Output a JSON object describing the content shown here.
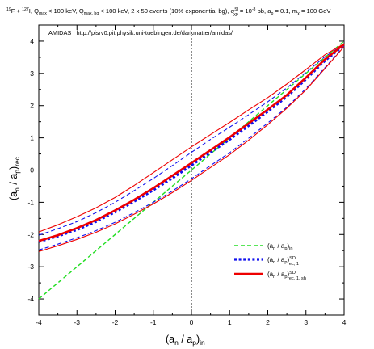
{
  "chart_data": {
    "type": "line",
    "title": "19F + 127I, Qmax < 100 keV, Qmax, bg < 100 keV, 2 x 50 events (10% exponential bg), σSIχp = 10-8 pb, ap = 0.1, mχ = 100 GeV",
    "title_parts": {
      "p1_sup": "19",
      "p1": "F + ",
      "p2_sup": "127",
      "p2": "I, Q",
      "qmax_sub": "max",
      "p3": " < 100 keV, Q",
      "qbg_sub": "max, bg",
      "p4": " < 100 keV, 2 x 50 events (10% exponential bg), σ",
      "sigma_sup": "SI",
      "sigma_sub": "χp",
      "p5": " = 10",
      "exp_sup": "-8",
      "p6": " pb, a",
      "ap_sub": "p",
      "p7": " = 0.1, m",
      "m_sub": "χ",
      "p8": " = 100 GeV"
    },
    "annotation": "AMIDAS   http://pisrv0.pit.physik.uni-tuebingen.de/darkmatter/amidas/",
    "xlabel": {
      "main": "(a",
      "n_sub": "n",
      "mid": " / a",
      "p_sub": "p",
      "end": ")",
      "in_sub": "in"
    },
    "ylabel": {
      "main": "(a",
      "n_sub": "n",
      "mid": " / a",
      "p_sub": "p",
      "end": ")",
      "rec_sub": "rec"
    },
    "xlim": [
      -4,
      4
    ],
    "ylim": [
      -4.5,
      4.5
    ],
    "xticks": [
      -4,
      -3,
      -2,
      -1,
      0,
      1,
      2,
      3,
      4
    ],
    "yticks": [
      -4,
      -3,
      -2,
      -1,
      0,
      1,
      2,
      3,
      4
    ],
    "x": [
      -4,
      -3.5,
      -3,
      -2.5,
      -2,
      -1.5,
      -1,
      -0.5,
      0,
      0.5,
      1,
      1.5,
      2,
      2.5,
      3,
      3.5,
      4
    ],
    "series": [
      {
        "key": "in",
        "color": "#22dd22",
        "style": "dashed",
        "width": 1.4,
        "values": [
          -4,
          -3.5,
          -3,
          -2.5,
          -2,
          -1.5,
          -1,
          -0.5,
          0,
          0.5,
          1,
          1.5,
          2,
          2.5,
          3,
          3.5,
          4
        ]
      },
      {
        "key": "rec1",
        "color": "#1111ee",
        "style": "dotted",
        "width": 3.2,
        "values": [
          -2.22,
          -2.05,
          -1.85,
          -1.6,
          -1.3,
          -0.97,
          -0.62,
          -0.25,
          0.15,
          0.55,
          0.95,
          1.38,
          1.82,
          2.28,
          2.82,
          3.4,
          3.88
        ]
      },
      {
        "key": "rec1_upper",
        "color": "#1111ee",
        "style": "dashed",
        "width": 1.1,
        "values": [
          -2.02,
          -1.82,
          -1.6,
          -1.32,
          -1.0,
          -0.64,
          -0.26,
          0.14,
          0.55,
          0.95,
          1.33,
          1.72,
          2.12,
          2.55,
          3.03,
          3.52,
          3.9
        ]
      },
      {
        "key": "rec1_lower",
        "color": "#1111ee",
        "style": "dashed",
        "width": 1.1,
        "values": [
          -2.48,
          -2.3,
          -2.1,
          -1.88,
          -1.62,
          -1.32,
          -1.0,
          -0.65,
          -0.27,
          0.14,
          0.54,
          0.99,
          1.46,
          1.95,
          2.53,
          3.18,
          3.85
        ]
      },
      {
        "key": "rec1sh",
        "color": "#ee0000",
        "style": "solid",
        "width": 2.6,
        "values": [
          -2.2,
          -2.02,
          -1.8,
          -1.55,
          -1.25,
          -0.92,
          -0.56,
          -0.17,
          0.22,
          0.62,
          1.02,
          1.45,
          1.88,
          2.33,
          2.87,
          3.44,
          3.9
        ]
      },
      {
        "key": "rec1sh_upper",
        "color": "#ee0000",
        "style": "solid",
        "width": 1.1,
        "values": [
          -1.92,
          -1.7,
          -1.45,
          -1.17,
          -0.85,
          -0.48,
          -0.08,
          0.32,
          0.72,
          1.1,
          1.48,
          1.87,
          2.25,
          2.67,
          3.12,
          3.58,
          3.92
        ]
      },
      {
        "key": "rec1sh_lower",
        "color": "#ee0000",
        "style": "solid",
        "width": 1.1,
        "values": [
          -2.53,
          -2.35,
          -2.15,
          -1.93,
          -1.67,
          -1.37,
          -1.05,
          -0.7,
          -0.32,
          0.08,
          0.48,
          0.93,
          1.41,
          1.92,
          2.49,
          3.15,
          3.83
        ]
      }
    ],
    "legend": {
      "position": "bottom-right",
      "entries": [
        {
          "key": "in",
          "main": "(a",
          "n_sub": "n",
          "mid": " / a",
          "p_sub": "p",
          "end": ")",
          "sub": "in",
          "sup": ""
        },
        {
          "key": "rec1",
          "main": "(a",
          "n_sub": "n",
          "mid": " / a",
          "p_sub": "p",
          "end": ")",
          "sub": "rec, 1",
          "sup": "SD"
        },
        {
          "key": "rec1sh",
          "main": "(a",
          "n_sub": "n",
          "mid": " / a",
          "p_sub": "p",
          "end": ")",
          "sub": "rec, 1, sh",
          "sup": "SD"
        }
      ]
    },
    "reference_lines": {
      "x": 0,
      "y": 0,
      "style": "dotted"
    },
    "grid": false
  }
}
